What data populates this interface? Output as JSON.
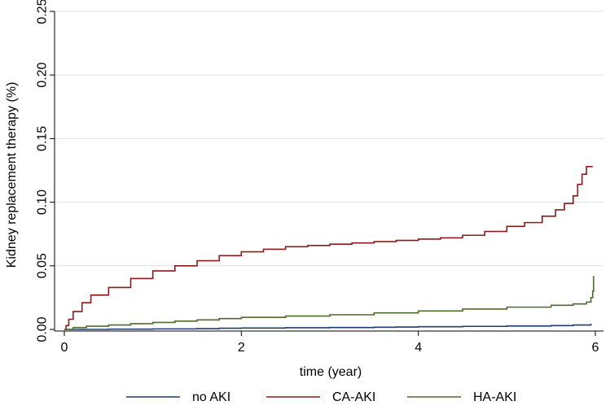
{
  "chart_data": {
    "type": "line",
    "title": "",
    "xlabel": "time (year)",
    "ylabel": "Kidney replacement therapy (%)",
    "xlim": [
      0,
      6
    ],
    "ylim": [
      0,
      0.25
    ],
    "x_ticks": [
      0,
      2,
      4,
      6
    ],
    "y_ticks": [
      0.0,
      0.05,
      0.1,
      0.15,
      0.2,
      0.25
    ],
    "y_tick_labels": [
      "0.00",
      "0.05",
      "0.10",
      "0.15",
      "0.20",
      "0.25"
    ],
    "x_tick_labels": [
      "0",
      "2",
      "4",
      "6"
    ],
    "grid": "horizontal",
    "legend_position": "bottom",
    "series": [
      {
        "name": "no AKI",
        "color": "#1f3d6e",
        "x": [
          0,
          0.5,
          1.0,
          1.5,
          1.75,
          2.0,
          2.5,
          3.0,
          3.5,
          3.75,
          4.0,
          4.5,
          5.0,
          5.5,
          5.75,
          5.95
        ],
        "y": [
          0.0,
          0.0002,
          0.0004,
          0.0006,
          0.0009,
          0.0011,
          0.0013,
          0.0015,
          0.0017,
          0.0019,
          0.0021,
          0.0024,
          0.0027,
          0.003,
          0.0035,
          0.0045
        ]
      },
      {
        "name": "CA-AKI",
        "color": "#8b1a1a",
        "x": [
          0,
          0.02,
          0.05,
          0.1,
          0.2,
          0.3,
          0.5,
          0.75,
          1.0,
          1.25,
          1.5,
          1.75,
          2.0,
          2.25,
          2.5,
          2.75,
          3.0,
          3.25,
          3.5,
          3.75,
          4.0,
          4.25,
          4.5,
          4.75,
          5.0,
          5.2,
          5.4,
          5.55,
          5.65,
          5.75,
          5.8,
          5.85,
          5.9,
          5.97
        ],
        "y": [
          0.0,
          0.003,
          0.008,
          0.014,
          0.021,
          0.027,
          0.033,
          0.04,
          0.046,
          0.05,
          0.054,
          0.058,
          0.061,
          0.063,
          0.065,
          0.066,
          0.067,
          0.068,
          0.069,
          0.07,
          0.071,
          0.072,
          0.074,
          0.077,
          0.081,
          0.084,
          0.089,
          0.094,
          0.099,
          0.105,
          0.114,
          0.122,
          0.128,
          0.128
        ]
      },
      {
        "name": "HA-AKI",
        "color": "#4e6b2b",
        "x": [
          0,
          0.1,
          0.25,
          0.5,
          0.75,
          1.0,
          1.25,
          1.5,
          1.75,
          2.0,
          2.5,
          3.0,
          3.5,
          4.0,
          4.5,
          5.0,
          5.5,
          5.75,
          5.9,
          5.95,
          5.97,
          5.98
        ],
        "y": [
          0.0,
          0.0015,
          0.0025,
          0.0035,
          0.0045,
          0.0055,
          0.0065,
          0.0075,
          0.0085,
          0.0095,
          0.0105,
          0.0115,
          0.013,
          0.0145,
          0.016,
          0.0175,
          0.019,
          0.02,
          0.0215,
          0.025,
          0.03,
          0.042
        ]
      }
    ]
  }
}
